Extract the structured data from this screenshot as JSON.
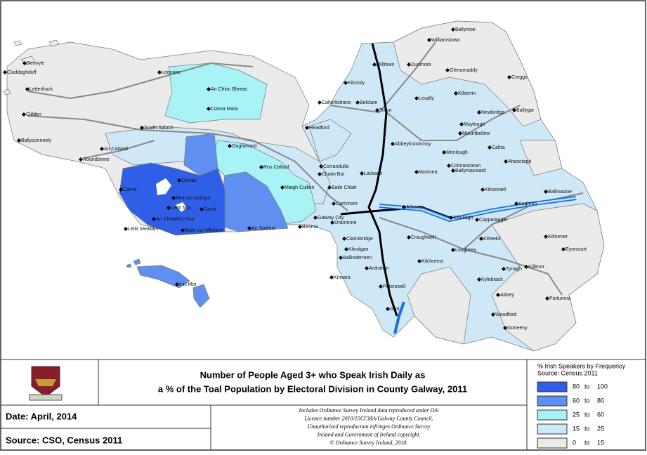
{
  "map": {
    "places": [
      "Claddaghduff",
      "Renvyle",
      "Letterfrack",
      "Leenane",
      "Clifden",
      "Ballyconneely",
      "Roundstone",
      "An Caiseal",
      "Sraith Salach",
      "An Chloc Bhreac",
      "Conna Mara",
      "Oughterard",
      "Ros Cathail",
      "Carna",
      "Camas",
      "Beal an Daingin",
      "Leitir Mor",
      "Casla",
      "An Cheathru Rua",
      "Leitir Mealláin",
      "Baile na hAbhann",
      "An Spideal",
      "Bearna",
      "Maigh Cuilinn",
      "Galway City",
      "Baile Chlair",
      "Cluain Bui",
      "Corrandulla",
      "Headford",
      "Inis Mor",
      "Ballymoe",
      "Williamstown",
      "Milltown",
      "Dunmore",
      "Glenamaddy",
      "Kilconly",
      "Creggs",
      "Kilkerrin",
      "Levally",
      "Tuam",
      "Ballygar",
      "Caherlistrane",
      "Belclare",
      "Newbridge",
      "Moylough",
      "Mountbellew",
      "Abbeyknockmoy",
      "Caltra",
      "Menlough",
      "Ahascragh",
      "Lackagh",
      "Monivea",
      "Colmanstown",
      "Ballymacward",
      "Kilconnell",
      "Ballinasloe",
      "Athenry",
      "Carnmore",
      "Oranmore",
      "Kiltullagh",
      "Aughrim",
      "Cappataggle",
      "Clarinbridge",
      "Craughwell",
      "Kilcolgan",
      "Kilreekil",
      "Kiltormer",
      "Loughrea",
      "Eyrecourt",
      "Ballinderreen",
      "Kilchreest",
      "Tynagh",
      "Killimor",
      "Ardrahan",
      "Kinvara",
      "Kylebrack",
      "Peterswell",
      "Abbey",
      "Portumna",
      "Gort",
      "Woodford",
      "Gorteeny"
    ]
  },
  "footer": {
    "title_lines": [
      "Number of People Aged 3+ who Speak Irish Daily as",
      "a % of the Toal Population by Electoral Division in County Galway, 2011"
    ],
    "date": "Date: April, 2014",
    "source": "Source: CSO, Census 2011",
    "notes": [
      "Includes Ordnance Survey Ireland data reproduced under OSi",
      "Licence number 2010/15CCMA/Galway County Council.",
      "Unauthorised reproduction infringes Ordnance Survey",
      "Ireland and Government of Ireland copyright.",
      "© Ordnance Survey Ireland, 2010."
    ]
  },
  "legend": {
    "title": "% Irish Speakers by Frequency",
    "subtitle": "Source: Census 2011",
    "range_word": "to",
    "classes": [
      {
        "min": 80,
        "max": 100,
        "color": "#2f5fe6"
      },
      {
        "min": 60,
        "max": 80,
        "color": "#5f8ff0"
      },
      {
        "min": 25,
        "max": 60,
        "color": "#a8f3f6"
      },
      {
        "min": 15,
        "max": 25,
        "color": "#cfe8f8"
      },
      {
        "min": 0,
        "max": 15,
        "color": "#ebebeb"
      }
    ]
  }
}
